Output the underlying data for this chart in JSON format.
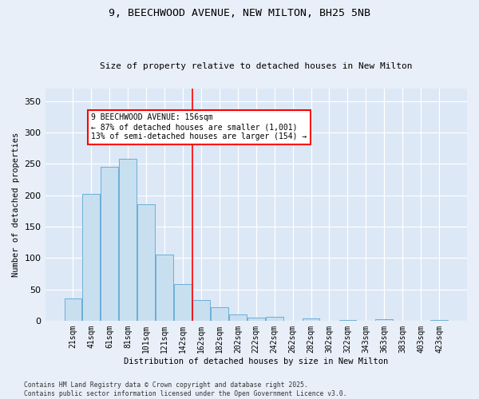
{
  "title": "9, BEECHWOOD AVENUE, NEW MILTON, BH25 5NB",
  "subtitle": "Size of property relative to detached houses in New Milton",
  "xlabel": "Distribution of detached houses by size in New Milton",
  "ylabel": "Number of detached properties",
  "bar_color": "#c8dff0",
  "bar_edge_color": "#6baed6",
  "background_color": "#dce8f5",
  "fig_color": "#e8eff8",
  "categories": [
    "21sqm",
    "41sqm",
    "61sqm",
    "81sqm",
    "101sqm",
    "121sqm",
    "142sqm",
    "162sqm",
    "182sqm",
    "202sqm",
    "222sqm",
    "242sqm",
    "262sqm",
    "282sqm",
    "302sqm",
    "322sqm",
    "343sqm",
    "363sqm",
    "383sqm",
    "403sqm",
    "423sqm"
  ],
  "values": [
    35,
    202,
    245,
    258,
    185,
    106,
    58,
    33,
    22,
    10,
    5,
    6,
    0,
    3,
    0,
    1,
    0,
    2,
    0,
    0,
    1
  ],
  "property_line_index": 7,
  "annotation_line1": "9 BEECHWOOD AVENUE: 156sqm",
  "annotation_line2": "← 87% of detached houses are smaller (1,001)",
  "annotation_line3": "13% of semi-detached houses are larger (154) →",
  "ylim": [
    0,
    370
  ],
  "yticks": [
    0,
    50,
    100,
    150,
    200,
    250,
    300,
    350
  ],
  "footnote1": "Contains HM Land Registry data © Crown copyright and database right 2025.",
  "footnote2": "Contains public sector information licensed under the Open Government Licence v3.0."
}
